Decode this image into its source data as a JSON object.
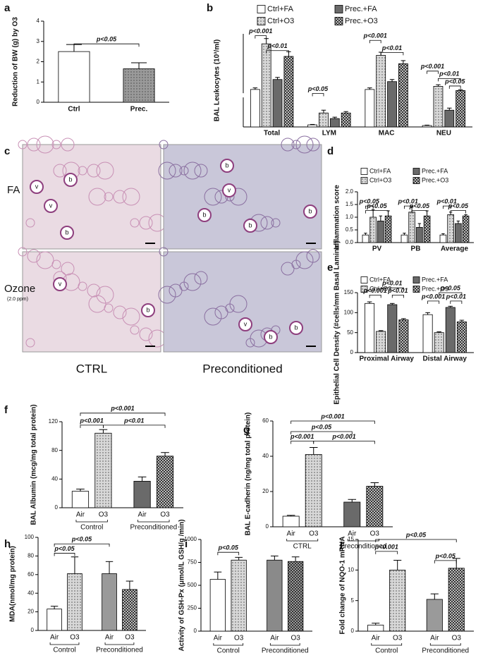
{
  "chart_data": [
    {
      "type": "bar",
      "panel": "a",
      "ylabel": "Reduction of BW (g) by O3",
      "categories": [
        "Ctrl",
        "Prec."
      ],
      "values": [
        2.5,
        1.65
      ],
      "errors": [
        0.35,
        0.3
      ],
      "colors": [
        "#ffffff",
        "#9a9a9a"
      ],
      "ylim": [
        0,
        4
      ],
      "yticks": [
        0,
        1,
        2,
        3,
        4
      ],
      "annotations": [
        "p<0.05"
      ]
    },
    {
      "type": "bar",
      "panel": "b",
      "ylabel": "BAL Leukocytes (10³/ml)",
      "categories": [
        "Total",
        "LYM",
        "MAC",
        "NEU"
      ],
      "ylim": [
        0,
        600
      ],
      "axis_break": [
        20,
        50
      ],
      "series": [
        {
          "name": "Ctrl+FA",
          "color": "#ffffff",
          "values": [
            70,
            1.5,
            70,
            1
          ],
          "errors": [
            15,
            0.3,
            15,
            0.3
          ]
        },
        {
          "name": "Ctrl+O3",
          "color": "#d8d8d8",
          "values": [
            505,
            10,
            395,
            100
          ],
          "errors": [
            50,
            2,
            30,
            15
          ]
        },
        {
          "name": "Prec.+FA",
          "color": "#6a6a6a",
          "values": [
            165,
            6,
            145,
            12
          ],
          "errors": [
            20,
            1,
            20,
            1.5
          ]
        },
        {
          "name": "Prec.+O3",
          "color": "#bdbdbd",
          "values": [
            385,
            10,
            315,
            60
          ],
          "errors": [
            45,
            1,
            30,
            8
          ]
        }
      ],
      "annotations": [
        "p<0.001",
        "p<0.01",
        "p<0.05",
        "p<0.001",
        "p<0.01",
        "p<0.001",
        "p<0.01",
        "p<0.05"
      ]
    },
    {
      "type": "bar",
      "panel": "d",
      "ylabel": "Inflammation score",
      "categories": [
        "PV",
        "PB",
        "Average"
      ],
      "ylim": [
        0,
        2
      ],
      "yticks": [
        {
          "value": 0,
          "label": "0.0"
        },
        0.5,
        {
          "value": 1,
          "label": "1.0"
        },
        1.5,
        {
          "value": 2,
          "label": "2.0"
        }
      ],
      "series": [
        {
          "name": "Ctrl+FA",
          "color": "#ffffff",
          "values": [
            0.3,
            0.3,
            0.3
          ],
          "errors": [
            0.07,
            0.07,
            0.05
          ]
        },
        {
          "name": "Ctrl+O3",
          "color": "#d8d8d8",
          "values": [
            1.0,
            1.2,
            1.1
          ],
          "errors": [
            0.3,
            0.2,
            0.1
          ]
        },
        {
          "name": "Prec.+FA",
          "color": "#6a6a6a",
          "values": [
            0.85,
            0.6,
            0.75
          ],
          "errors": [
            0.2,
            0.15,
            0.1
          ]
        },
        {
          "name": "Prec.+O3",
          "color": "#bdbdbd",
          "values": [
            1.05,
            1.05,
            1.05
          ],
          "errors": [
            0.2,
            0.2,
            0.05
          ]
        }
      ],
      "annotations": [
        "p<0.05",
        "p<0.05",
        "p<0.01",
        "p<0.05",
        "p<0.01",
        "p<0.05"
      ]
    },
    {
      "type": "bar",
      "panel": "e",
      "ylabel": "Epithelial Cell Density (#cells/mm Basal Laminal)",
      "categories": [
        "Proximal Airway",
        "Distal Airway"
      ],
      "ylim": [
        0,
        150
      ],
      "yticks": [
        0,
        50,
        100,
        150
      ],
      "series": [
        {
          "name": "Ctrl+FA",
          "color": "#ffffff",
          "values": [
            123,
            95
          ],
          "errors": [
            4,
            5
          ]
        },
        {
          "name": "Ctrl+O3",
          "color": "#d8d8d8",
          "values": [
            53,
            50
          ],
          "errors": [
            2,
            2
          ]
        },
        {
          "name": "Prec.+FA",
          "color": "#6a6a6a",
          "values": [
            120,
            113
          ],
          "errors": [
            3,
            3
          ]
        },
        {
          "name": "Prec.+O3",
          "color": "#bdbdbd",
          "values": [
            82,
            77
          ],
          "errors": [
            3,
            4
          ]
        }
      ],
      "annotations": [
        "p<0.01",
        "p<0.001",
        "p<0.01",
        "p<0.05",
        "p<0.001",
        "p<0.01"
      ]
    },
    {
      "type": "bar",
      "panel": "f",
      "ylabel": "BAL Albumin (mcg/mg total protein)",
      "categories": [
        "Air",
        "O3",
        "Air",
        "O3"
      ],
      "groups": [
        "Control",
        "Preconditioned"
      ],
      "values": [
        23,
        104,
        37,
        72
      ],
      "errors": [
        3,
        5,
        6,
        5
      ],
      "colors": [
        "#ffffff",
        "#d8d8d8",
        "#6a6a6a",
        "#bdbdbd"
      ],
      "ylim": [
        0,
        120
      ],
      "yticks": [
        0,
        40,
        80,
        120
      ],
      "annotations": [
        "p<0.001",
        "p<0.001",
        "p<0.01"
      ]
    },
    {
      "type": "bar",
      "panel": "g",
      "ylabel": "BAL E-cadherin (ng/mg total protein)",
      "categories": [
        "Air",
        "O3",
        "Air",
        "O3"
      ],
      "groups": [
        "CTRL",
        "Preconditioned"
      ],
      "values": [
        6,
        41,
        14,
        23
      ],
      "errors": [
        0.5,
        4,
        1.5,
        2
      ],
      "colors": [
        "#ffffff",
        "#d8d8d8",
        "#6a6a6a",
        "#bdbdbd"
      ],
      "ylim": [
        0,
        60
      ],
      "yticks": [
        0,
        20,
        40,
        60
      ],
      "annotations": [
        "p<0.001",
        "p<0.05",
        "p<0.001",
        "p<0.001"
      ]
    },
    {
      "type": "bar",
      "panel": "h",
      "ylabel": "MDA(nmol/mg protein)",
      "categories": [
        "Air",
        "O3",
        "Air",
        "O3"
      ],
      "groups": [
        "Control",
        "Preconditioned"
      ],
      "values": [
        23,
        61,
        61,
        44
      ],
      "errors": [
        3,
        18,
        13,
        9
      ],
      "colors": [
        "#ffffff",
        "#d8d8d8",
        "#9a9a9a",
        "#bdbdbd"
      ],
      "ylim": [
        0,
        100
      ],
      "yticks": [
        0,
        20,
        40,
        60,
        80,
        100
      ],
      "annotations": [
        "p<0.05",
        "p<0.05"
      ]
    },
    {
      "type": "bar",
      "panel": "i",
      "ylabel": "Activity of GSH-Px (μmol/L GSH/g /min)",
      "categories": [
        "Air",
        "O3",
        "Air",
        "O3"
      ],
      "groups": [
        "Control",
        "Preconditioned"
      ],
      "values": [
        565,
        775,
        775,
        760
      ],
      "errors": [
        80,
        30,
        45,
        50
      ],
      "colors": [
        "#ffffff",
        "#d8d8d8",
        "#8a8a8a",
        "#9a9a9a"
      ],
      "ylim": [
        0,
        1000
      ],
      "yticks": [
        0,
        250,
        500,
        750,
        1000
      ],
      "annotations": [
        "p<0.05"
      ]
    },
    {
      "type": "bar",
      "panel": "j",
      "ylabel": "Fold change of NQO-1 mRNA",
      "categories": [
        "Air",
        "O3",
        "Air",
        "O3"
      ],
      "groups": [
        "Control",
        "Preconditioned"
      ],
      "values": [
        1,
        10,
        5.2,
        10.3
      ],
      "errors": [
        0.3,
        1.6,
        0.9,
        1.6
      ],
      "colors": [
        "#ffffff",
        "#d8d8d8",
        "#9a9a9a",
        "#bdbdbd"
      ],
      "ylim": [
        0,
        15
      ],
      "yticks": [
        0,
        5,
        10,
        15
      ],
      "annotations": [
        "p<0.05",
        "p<0.001",
        "p<0.05"
      ]
    }
  ],
  "micrograph_panel": {
    "panel": "c",
    "rows": [
      "FA",
      "Ozone"
    ],
    "dose": "(2.0 ppm)",
    "columns": [
      "CTRL",
      "Preconditioned"
    ],
    "image_labels": [
      [
        "v",
        "b",
        "v",
        "b"
      ],
      [
        "b",
        "v",
        "b",
        "b",
        "b"
      ],
      [
        "v",
        "b"
      ],
      [
        "v",
        "b",
        "b"
      ]
    ]
  }
}
